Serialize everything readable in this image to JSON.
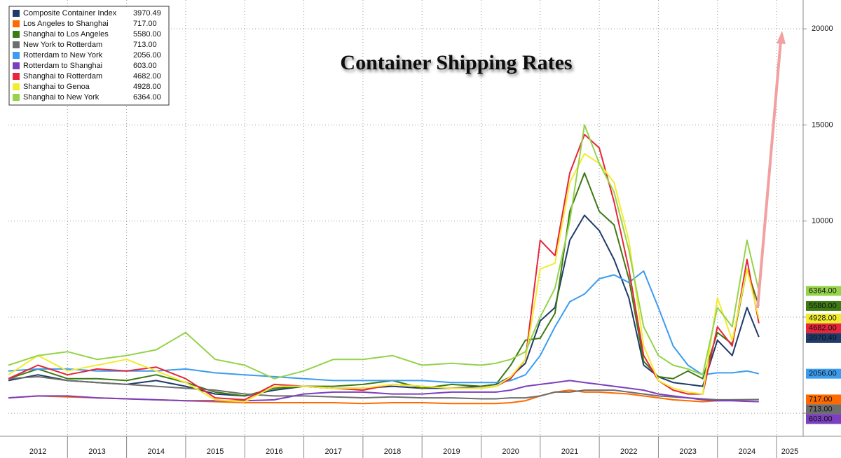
{
  "chart_data": {
    "type": "line",
    "title": "Container Shipping Rates",
    "x": [
      2012,
      2012.5,
      2013,
      2013.5,
      2014,
      2014.5,
      2015,
      2015.5,
      2016,
      2016.5,
      2017,
      2017.5,
      2018,
      2018.5,
      2019,
      2019.5,
      2020,
      2020.25,
      2020.5,
      2020.75,
      2021,
      2021.25,
      2021.5,
      2021.75,
      2022,
      2022.25,
      2022.5,
      2022.75,
      2023,
      2023.25,
      2023.5,
      2023.75,
      2024,
      2024.25,
      2024.5,
      2024.7
    ],
    "xlim": [
      2012,
      2025.45
    ],
    "xticks": [
      2012,
      2013,
      2014,
      2015,
      2016,
      2017,
      2018,
      2019,
      2020,
      2021,
      2022,
      2023,
      2024,
      2025
    ],
    "ylim": [
      -1200,
      21500
    ],
    "yticks": [
      0,
      5000,
      10000,
      15000,
      20000
    ],
    "grid": true,
    "legend": "top-left",
    "series": [
      {
        "name": "Composite Container Index",
        "latest_label": "3970.49",
        "color": "#1f3b6a",
        "values": [
          1700,
          2000,
          1700,
          1600,
          1500,
          1700,
          1400,
          1000,
          900,
          1200,
          1400,
          1300,
          1300,
          1400,
          1300,
          1300,
          1400,
          1500,
          1900,
          2600,
          4800,
          5500,
          9000,
          10300,
          9500,
          8000,
          6000,
          2500,
          1900,
          1600,
          1500,
          1400,
          3800,
          3000,
          5500,
          3970.49
        ]
      },
      {
        "name": "Los Angeles to Shanghai",
        "latest_label": "717.00",
        "color": "#ff6a00",
        "values": [
          800,
          900,
          850,
          800,
          750,
          700,
          650,
          600,
          550,
          550,
          550,
          550,
          500,
          550,
          550,
          500,
          500,
          500,
          550,
          650,
          900,
          1100,
          1200,
          1100,
          1100,
          1050,
          1000,
          900,
          800,
          700,
          650,
          600,
          650,
          700,
          700,
          717
        ]
      },
      {
        "name": "Shanghai to Los Angeles",
        "latest_label": "5580.00",
        "color": "#3d7a14",
        "values": [
          1800,
          2300,
          1800,
          1800,
          1700,
          2000,
          1600,
          1100,
          900,
          1300,
          1400,
          1400,
          1500,
          1700,
          1300,
          1500,
          1400,
          1500,
          2500,
          3800,
          3900,
          5200,
          10500,
          12500,
          10500,
          9800,
          7000,
          2700,
          1900,
          1800,
          2200,
          1800,
          4200,
          3600,
          7500,
          5580
        ]
      },
      {
        "name": "New York to Rotterdam",
        "latest_label": "713.00",
        "color": "#6e6e6e",
        "values": [
          1800,
          1900,
          1700,
          1600,
          1500,
          1400,
          1300,
          1200,
          1000,
          900,
          900,
          850,
          800,
          850,
          800,
          800,
          750,
          750,
          800,
          800,
          900,
          1100,
          1100,
          1200,
          1200,
          1200,
          1100,
          1000,
          900,
          850,
          800,
          750,
          700,
          700,
          710,
          713
        ]
      },
      {
        "name": "Rotterdam to New York",
        "latest_label": "2056.00",
        "color": "#3b9cf0",
        "values": [
          2200,
          2300,
          2300,
          2200,
          2200,
          2200,
          2300,
          2100,
          2000,
          1900,
          1800,
          1700,
          1700,
          1700,
          1700,
          1600,
          1600,
          1600,
          1700,
          2000,
          3000,
          4500,
          5800,
          6200,
          7000,
          7200,
          6800,
          7400,
          5500,
          3500,
          2500,
          2000,
          2100,
          2100,
          2200,
          2056
        ]
      },
      {
        "name": "Rotterdam to Shanghai",
        "latest_label": "603.00",
        "color": "#7b3fbf",
        "values": [
          800,
          900,
          900,
          800,
          750,
          700,
          650,
          650,
          650,
          700,
          1000,
          1100,
          1100,
          1000,
          1000,
          1100,
          1100,
          1100,
          1200,
          1400,
          1500,
          1600,
          1700,
          1600,
          1500,
          1400,
          1300,
          1200,
          1000,
          900,
          800,
          700,
          650,
          650,
          620,
          603
        ]
      },
      {
        "name": "Shanghai to Rotterdam",
        "latest_label": "4682.00",
        "color": "#e8253a",
        "values": [
          1800,
          2500,
          2000,
          2300,
          2200,
          2400,
          1800,
          800,
          700,
          1500,
          1400,
          1300,
          1200,
          1500,
          1400,
          1300,
          1300,
          1400,
          1800,
          2800,
          9000,
          8200,
          12500,
          14500,
          13800,
          11000,
          7500,
          3000,
          1700,
          1200,
          1000,
          1000,
          4500,
          3500,
          8000,
          4682
        ]
      },
      {
        "name": "Shanghai to Genoa",
        "latest_label": "4928.00",
        "color": "#f2ec2e",
        "values": [
          2000,
          3000,
          2200,
          2500,
          2800,
          2200,
          1600,
          700,
          600,
          1400,
          1400,
          1300,
          1300,
          1500,
          1400,
          1300,
          1300,
          1400,
          1900,
          2800,
          7500,
          7800,
          12000,
          13500,
          13000,
          12000,
          9000,
          3500,
          1700,
          1300,
          1100,
          1000,
          6000,
          3800,
          7500,
          4928
        ]
      },
      {
        "name": "Shanghai to New York",
        "latest_label": "6364.00",
        "color": "#94d34a",
        "values": [
          2500,
          3000,
          3200,
          2800,
          3000,
          3300,
          4200,
          2800,
          2500,
          1800,
          2200,
          2800,
          2800,
          3000,
          2500,
          2600,
          2500,
          2600,
          2800,
          3200,
          5000,
          6500,
          10000,
          15000,
          13000,
          11500,
          8500,
          4500,
          3000,
          2500,
          2300,
          2000,
          5500,
          4500,
          9000,
          6364
        ]
      }
    ]
  }
}
